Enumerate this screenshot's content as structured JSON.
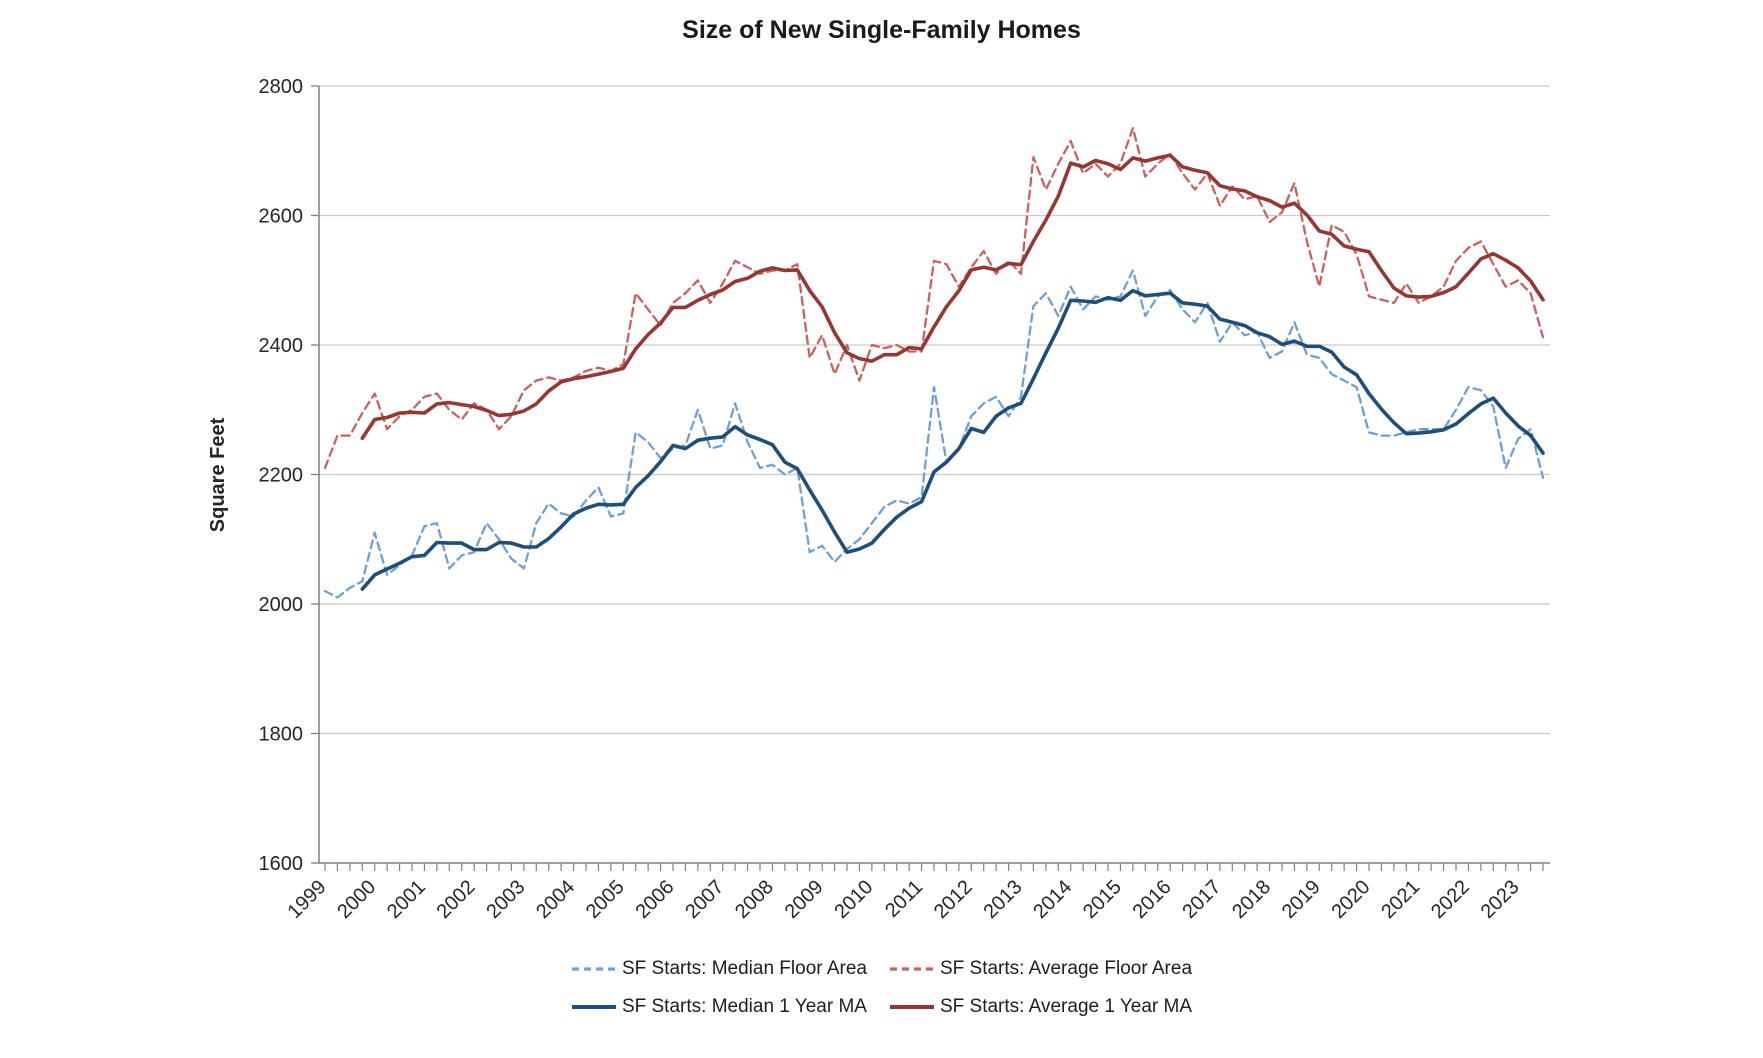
{
  "chart_data": {
    "type": "line",
    "title": "Size of New Single-Family Homes",
    "ylabel": "Square Feet",
    "ylim": [
      1600,
      2800
    ],
    "y_ticks": [
      1600,
      1800,
      2000,
      2200,
      2400,
      2600,
      2800
    ],
    "x_unit": "quarter",
    "x_start": "1999Q1",
    "x_end": "2023Q3",
    "x_tick_years": [
      1999,
      2000,
      2001,
      2002,
      2003,
      2004,
      2005,
      2006,
      2007,
      2008,
      2009,
      2010,
      2011,
      2012,
      2013,
      2014,
      2015,
      2016,
      2017,
      2018,
      2019,
      2020,
      2021,
      2022,
      2023
    ],
    "grid": true,
    "legend_position": "bottom",
    "axis_color": "#808080",
    "grid_color": "#c9c9c9",
    "text_color": "#262626",
    "legend_rows": [
      [
        0,
        1
      ],
      [
        2,
        3
      ]
    ],
    "series": [
      {
        "name": "SF Starts: Median Floor Area",
        "line_style": "dashed",
        "color": "#6f9fd6",
        "width": 2.3,
        "start_index": 0,
        "values": [
          2020,
          2010,
          2025,
          2035,
          2110,
          2045,
          2060,
          2075,
          2120,
          2125,
          2055,
          2075,
          2080,
          2125,
          2100,
          2070,
          2055,
          2125,
          2155,
          2140,
          2135,
          2160,
          2180,
          2135,
          2140,
          2265,
          2250,
          2225,
          2240,
          2245,
          2300,
          2240,
          2245,
          2310,
          2250,
          2210,
          2215,
          2200,
          2210,
          2080,
          2090,
          2065,
          2085,
          2100,
          2125,
          2150,
          2160,
          2155,
          2165,
          2335,
          2220,
          2240,
          2290,
          2310,
          2320,
          2290,
          2320,
          2460,
          2480,
          2445,
          2490,
          2455,
          2475,
          2470,
          2475,
          2515,
          2445,
          2475,
          2485,
          2455,
          2435,
          2465,
          2405,
          2435,
          2415,
          2420,
          2380,
          2390,
          2435,
          2385,
          2380,
          2355,
          2345,
          2335,
          2265,
          2260,
          2260,
          2265,
          2270,
          2270,
          2270,
          2300,
          2335,
          2330,
          2305,
          2210,
          2255,
          2270,
          2195
        ]
      },
      {
        "name": "SF Starts: Average Floor Area",
        "line_style": "dashed",
        "color": "#c8625e",
        "width": 2.3,
        "start_index": 0,
        "values": [
          2210,
          2260,
          2260,
          2295,
          2325,
          2270,
          2290,
          2300,
          2320,
          2325,
          2300,
          2285,
          2310,
          2300,
          2270,
          2290,
          2330,
          2345,
          2350,
          2345,
          2350,
          2360,
          2365,
          2360,
          2370,
          2480,
          2455,
          2430,
          2465,
          2480,
          2500,
          2465,
          2495,
          2530,
          2520,
          2510,
          2515,
          2515,
          2525,
          2380,
          2415,
          2355,
          2400,
          2345,
          2400,
          2395,
          2400,
          2390,
          2390,
          2530,
          2525,
          2490,
          2520,
          2545,
          2510,
          2530,
          2510,
          2690,
          2640,
          2680,
          2715,
          2665,
          2680,
          2660,
          2680,
          2735,
          2660,
          2680,
          2695,
          2665,
          2640,
          2665,
          2615,
          2645,
          2625,
          2630,
          2590,
          2605,
          2650,
          2560,
          2490,
          2585,
          2575,
          2540,
          2475,
          2470,
          2465,
          2495,
          2465,
          2475,
          2490,
          2530,
          2550,
          2560,
          2525,
          2490,
          2500,
          2480,
          2412
        ]
      },
      {
        "name": "SF Starts: Median 1 Year MA",
        "line_style": "solid",
        "color": "#1f4e79",
        "width": 3.6,
        "start_index": 3,
        "values": [
          2023,
          2045,
          2054,
          2063,
          2073,
          2075,
          2095,
          2094,
          2094,
          2084,
          2084,
          2095,
          2094,
          2088,
          2088,
          2101,
          2119,
          2139,
          2148,
          2154,
          2153,
          2154,
          2180,
          2198,
          2220,
          2245,
          2240,
          2253,
          2256,
          2258,
          2274,
          2261,
          2254,
          2246,
          2219,
          2209,
          2176,
          2145,
          2111,
          2080,
          2085,
          2094,
          2115,
          2134,
          2148,
          2158,
          2204,
          2219,
          2240,
          2271,
          2265,
          2290,
          2303,
          2310,
          2348,
          2388,
          2426,
          2469,
          2468,
          2466,
          2473,
          2469,
          2484,
          2476,
          2478,
          2480,
          2465,
          2463,
          2460,
          2440,
          2435,
          2430,
          2419,
          2413,
          2401,
          2406,
          2398,
          2398,
          2389,
          2366,
          2354,
          2325,
          2301,
          2280,
          2263,
          2264,
          2266,
          2269,
          2278,
          2294,
          2309,
          2318,
          2295,
          2275,
          2260,
          2233
        ]
      },
      {
        "name": "SF Starts: Average 1 Year MA",
        "line_style": "solid",
        "color": "#943735",
        "width": 3.6,
        "start_index": 3,
        "values": [
          2256,
          2285,
          2288,
          2295,
          2296,
          2295,
          2309,
          2311,
          2308,
          2305,
          2299,
          2291,
          2293,
          2298,
          2309,
          2329,
          2343,
          2348,
          2351,
          2355,
          2359,
          2364,
          2394,
          2416,
          2434,
          2458,
          2458,
          2469,
          2478,
          2485,
          2498,
          2503,
          2514,
          2519,
          2515,
          2516,
          2484,
          2459,
          2419,
          2388,
          2379,
          2375,
          2385,
          2385,
          2396,
          2394,
          2428,
          2459,
          2484,
          2516,
          2520,
          2516,
          2526,
          2524,
          2560,
          2593,
          2630,
          2681,
          2675,
          2685,
          2680,
          2671,
          2689,
          2684,
          2689,
          2693,
          2675,
          2670,
          2666,
          2646,
          2641,
          2638,
          2629,
          2623,
          2613,
          2619,
          2601,
          2576,
          2571,
          2553,
          2548,
          2544,
          2515,
          2488,
          2476,
          2474,
          2475,
          2481,
          2490,
          2511,
          2533,
          2541,
          2531,
          2519,
          2499,
          2470
        ]
      }
    ]
  }
}
